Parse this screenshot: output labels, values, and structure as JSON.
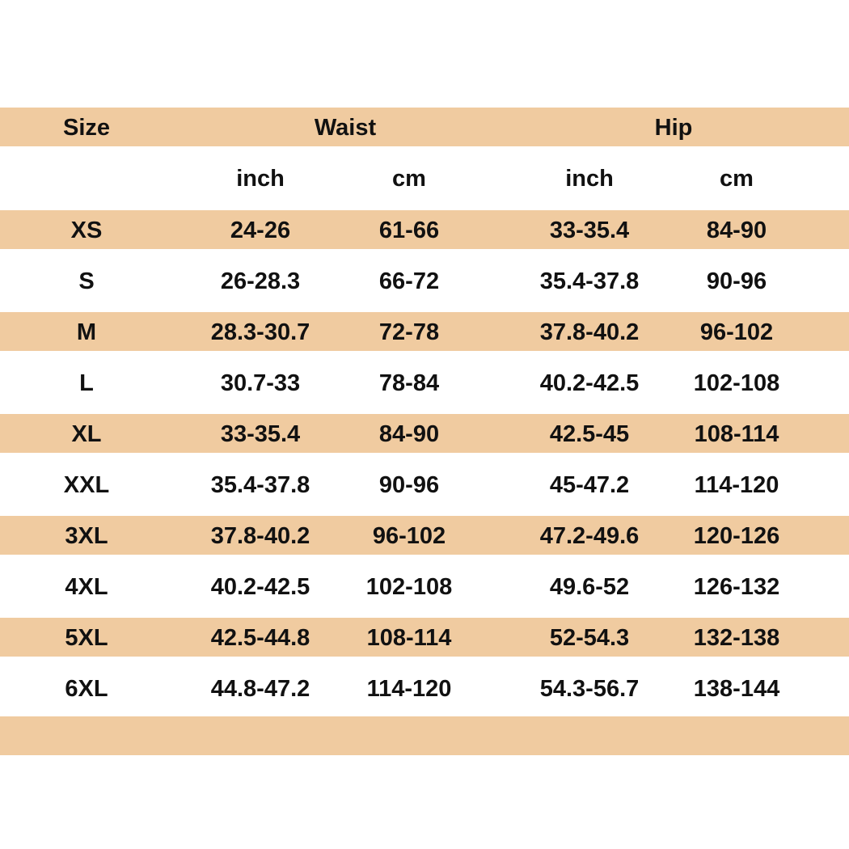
{
  "header": {
    "size": "Size",
    "waist": "Waist",
    "hip": "Hip"
  },
  "subheader": [
    "inch",
    "cm",
    "inch",
    "cm"
  ],
  "table": {
    "rows": [
      [
        "XS",
        "24-26",
        "61-66",
        "33-35.4",
        "84-90"
      ],
      [
        "S",
        "26-28.3",
        "66-72",
        "35.4-37.8",
        "90-96"
      ],
      [
        "M",
        "28.3-30.7",
        "72-78",
        "37.8-40.2",
        "96-102"
      ],
      [
        "L",
        "30.7-33",
        "78-84",
        "40.2-42.5",
        "102-108"
      ],
      [
        "XL",
        "33-35.4",
        "84-90",
        "42.5-45",
        "108-114"
      ],
      [
        "XXL",
        "35.4-37.8",
        "90-96",
        "45-47.2",
        "114-120"
      ],
      [
        "3XL",
        "37.8-40.2",
        "96-102",
        "47.2-49.6",
        "120-126"
      ],
      [
        "4XL",
        "40.2-42.5",
        "102-108",
        "49.6-52",
        "126-132"
      ],
      [
        "5XL",
        "42.5-44.8",
        "108-114",
        "52-54.3",
        "132-138"
      ],
      [
        "6XL",
        "44.8-47.2",
        "114-120",
        "54.3-56.7",
        "138-144"
      ]
    ]
  }
}
